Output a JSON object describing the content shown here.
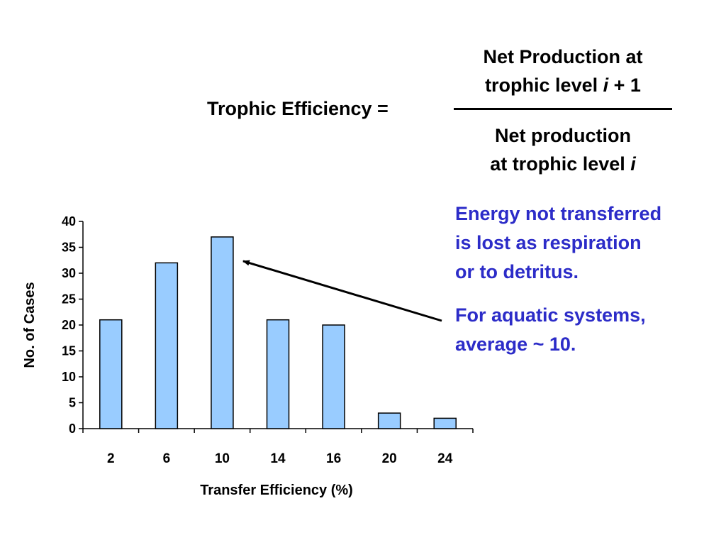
{
  "equation": {
    "label": "Trophic Efficiency =",
    "numerator": {
      "line1": "Net Production at",
      "line2_text": "trophic level ",
      "line2_var": "i",
      "line2_suffix": " + 1"
    },
    "denominator": {
      "line1": "Net production",
      "line2_text": "at trophic level ",
      "line2_var": "i"
    }
  },
  "notes": {
    "note1": [
      "Energy not transferred",
      "is lost as respiration",
      "or to detritus."
    ],
    "note2": [
      "For aquatic systems,",
      "average ~ 10."
    ]
  },
  "colors": {
    "bar_fill": "#99ccff",
    "bar_stroke": "#000000",
    "note_text": "#2c2cc8",
    "arrow": "#000000"
  },
  "chart_data": {
    "type": "bar",
    "categories": [
      "2",
      "6",
      "10",
      "14",
      "16",
      "20",
      "24"
    ],
    "values": [
      21,
      32,
      37,
      21,
      20,
      3,
      2
    ],
    "title": "",
    "xlabel": "Transfer Efficiency (%)",
    "ylabel": "No. of Cases",
    "ylim": [
      0,
      40
    ],
    "yticks": [
      0,
      5,
      10,
      15,
      20,
      25,
      30,
      35,
      40
    ],
    "grid": false,
    "annotation_arrow_target_category": "10"
  }
}
